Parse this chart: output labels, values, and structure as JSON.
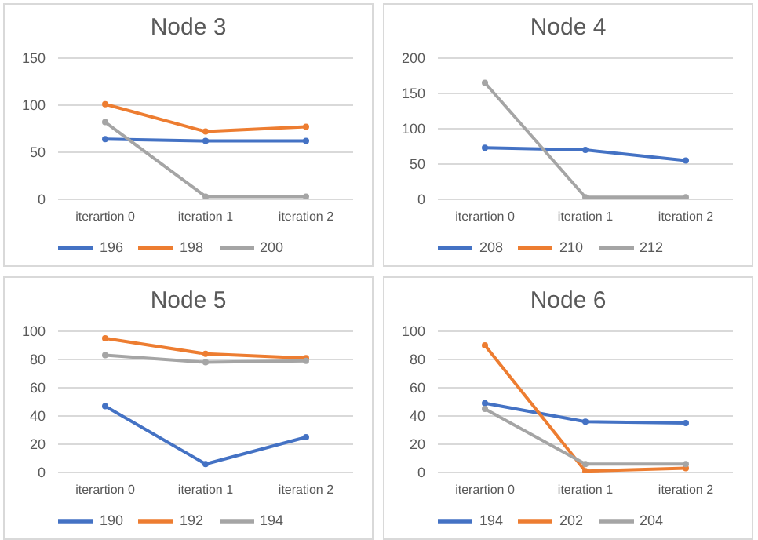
{
  "chart_data": [
    {
      "type": "line",
      "title": "Node 3",
      "categories": [
        "iterartion 0",
        "iteration 1",
        "iteration 2"
      ],
      "ylim": [
        0,
        150
      ],
      "yticks": [
        0,
        50,
        100,
        150
      ],
      "grid": "y",
      "legend": "bottom",
      "marker": "circle",
      "series": [
        {
          "name": "196",
          "color": "#4472c4",
          "values": [
            64,
            62,
            62
          ]
        },
        {
          "name": "198",
          "color": "#ed7d31",
          "values": [
            101,
            72,
            77
          ]
        },
        {
          "name": "200",
          "color": "#a5a5a5",
          "values": [
            82,
            3,
            3
          ]
        }
      ]
    },
    {
      "type": "line",
      "title": "Node 4",
      "categories": [
        "iterartion 0",
        "iteration 1",
        "iteration 2"
      ],
      "ylim": [
        0,
        200
      ],
      "yticks": [
        0,
        50,
        100,
        150,
        200
      ],
      "grid": "y",
      "legend": "bottom",
      "marker": "circle",
      "series": [
        {
          "name": "208",
          "color": "#4472c4",
          "values": [
            73,
            70,
            55
          ]
        },
        {
          "name": "210",
          "color": "#ed7d31",
          "values": [
            null,
            null,
            null
          ]
        },
        {
          "name": "212",
          "color": "#a5a5a5",
          "values": [
            165,
            3,
            3
          ]
        }
      ]
    },
    {
      "type": "line",
      "title": "Node 5",
      "categories": [
        "iterartion 0",
        "iteration 1",
        "iteration 2"
      ],
      "ylim": [
        0,
        100
      ],
      "yticks": [
        0,
        20,
        40,
        60,
        80,
        100
      ],
      "grid": "y",
      "legend": "bottom",
      "marker": "circle",
      "series": [
        {
          "name": "190",
          "color": "#4472c4",
          "values": [
            47,
            6,
            25
          ]
        },
        {
          "name": "192",
          "color": "#ed7d31",
          "values": [
            95,
            84,
            81
          ]
        },
        {
          "name": "194",
          "color": "#a5a5a5",
          "values": [
            83,
            78,
            79
          ]
        }
      ]
    },
    {
      "type": "line",
      "title": "Node 6",
      "categories": [
        "iterartion 0",
        "iteration 1",
        "iteration 2"
      ],
      "ylim": [
        0,
        100
      ],
      "yticks": [
        0,
        20,
        40,
        60,
        80,
        100
      ],
      "grid": "y",
      "legend": "bottom",
      "marker": "circle",
      "series": [
        {
          "name": "194",
          "color": "#4472c4",
          "values": [
            49,
            36,
            35
          ]
        },
        {
          "name": "202",
          "color": "#ed7d31",
          "values": [
            90,
            1,
            3
          ]
        },
        {
          "name": "204",
          "color": "#a5a5a5",
          "values": [
            45,
            6,
            6
          ]
        }
      ]
    }
  ]
}
